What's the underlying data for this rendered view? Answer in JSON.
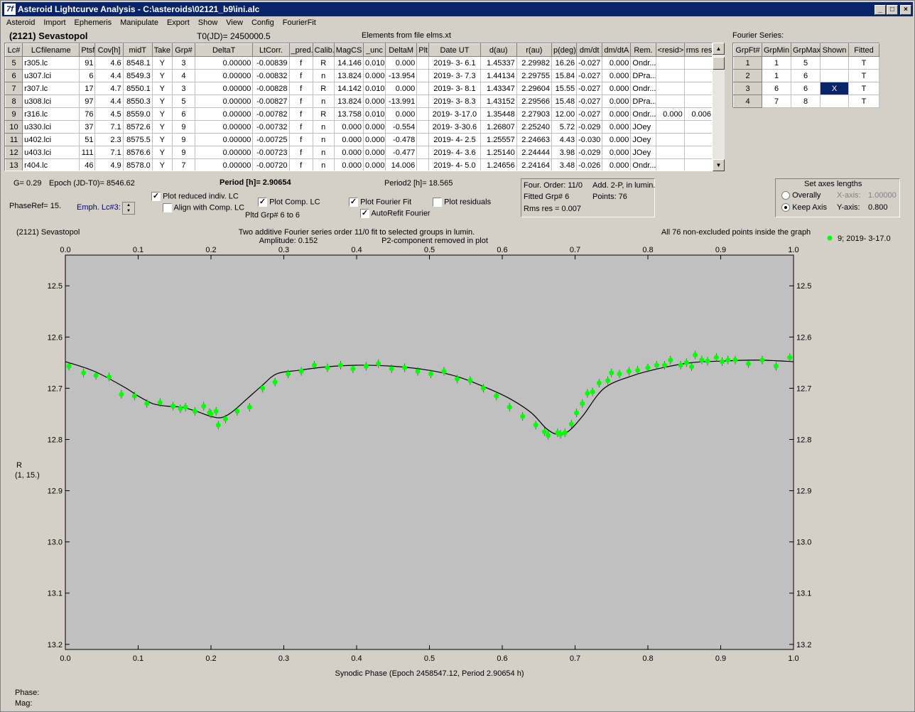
{
  "window": {
    "title": "Asteroid Lightcurve Analysis - C:\\asteroids\\02121_b9\\ini.alc",
    "icon": "7f"
  },
  "menu": [
    "Asteroid",
    "Import",
    "Ephemeris",
    "Manipulate",
    "Export",
    "Show",
    "View",
    "Config",
    "FourierFit"
  ],
  "header": {
    "asteroid": "(2121) Sevastopol",
    "t0": "T0(JD)= 2450000.5",
    "elements": "Elements from file elms.xt"
  },
  "lc_table": {
    "columns": [
      "Lc#",
      "LCfilename",
      "Ptsf",
      "Cov[h]",
      "midT",
      "Take",
      "Grp#",
      "DeltaT",
      "LtCorr.",
      "_pred.",
      "Calib.",
      "MagCS",
      "_unc",
      "DeltaM",
      "Plt",
      "Date UT",
      "d(au)",
      "r(au)",
      "p(deg)",
      "dm/dt",
      "dm/dtA",
      "Rem.",
      "<resid>",
      "rms res"
    ],
    "rows": [
      [
        "5",
        "r305.lc",
        "91",
        "4.6",
        "8548.1",
        "Y",
        "3",
        "0.00000",
        "-0.00839",
        "f",
        "R",
        "14.146",
        "0.010",
        "0.000",
        "",
        "2019- 3- 6.1",
        "1.45337",
        "2.29982",
        "16.26",
        "-0.027",
        "0.000",
        "Ondr...",
        "",
        ""
      ],
      [
        "6",
        "u307.lci",
        "6",
        "4.4",
        "8549.3",
        "Y",
        "4",
        "0.00000",
        "-0.00832",
        "f",
        "n",
        "13.824",
        "0.000",
        "-13.954",
        "",
        "2019- 3- 7.3",
        "1.44134",
        "2.29755",
        "15.84",
        "-0.027",
        "0.000",
        "DPra...",
        "",
        ""
      ],
      [
        "7",
        "r307.lc",
        "17",
        "4.7",
        "8550.1",
        "Y",
        "3",
        "0.00000",
        "-0.00828",
        "f",
        "R",
        "14.142",
        "0.010",
        "0.000",
        "",
        "2019- 3- 8.1",
        "1.43347",
        "2.29604",
        "15.55",
        "-0.027",
        "0.000",
        "Ondr...",
        "",
        ""
      ],
      [
        "8",
        "u308.lci",
        "97",
        "4.4",
        "8550.3",
        "Y",
        "5",
        "0.00000",
        "-0.00827",
        "f",
        "n",
        "13.824",
        "0.000",
        "-13.991",
        "",
        "2019- 3- 8.3",
        "1.43152",
        "2.29566",
        "15.48",
        "-0.027",
        "0.000",
        "DPra...",
        "",
        ""
      ],
      [
        "9",
        "r316.lc",
        "76",
        "4.5",
        "8559.0",
        "Y",
        "6",
        "0.00000",
        "-0.00782",
        "f",
        "R",
        "13.758",
        "0.010",
        "0.000",
        "",
        "2019- 3-17.0",
        "1.35448",
        "2.27903",
        "12.00",
        "-0.027",
        "0.000",
        "Ondr...",
        "0.000",
        "0.006"
      ],
      [
        "10",
        "u330.lci",
        "37",
        "7.1",
        "8572.6",
        "Y",
        "9",
        "0.00000",
        "-0.00732",
        "f",
        "n",
        "0.000",
        "0.000",
        "-0.554",
        "",
        "2019- 3-30.6",
        "1.26807",
        "2.25240",
        "5.72",
        "-0.029",
        "0.000",
        "JOey",
        "",
        ""
      ],
      [
        "11",
        "u402.lci",
        "51",
        "2.3",
        "8575.5",
        "Y",
        "9",
        "0.00000",
        "-0.00725",
        "f",
        "n",
        "0.000",
        "0.000",
        "-0.478",
        "",
        "2019- 4- 2.5",
        "1.25557",
        "2.24663",
        "4.43",
        "-0.030",
        "0.000",
        "JOey",
        "",
        ""
      ],
      [
        "12",
        "u403.lci",
        "111",
        "7.1",
        "8576.6",
        "Y",
        "9",
        "0.00000",
        "-0.00723",
        "f",
        "n",
        "0.000",
        "0.000",
        "-0.477",
        "",
        "2019- 4- 3.6",
        "1.25140",
        "2.24444",
        "3.98",
        "-0.029",
        "0.000",
        "JOey",
        "",
        ""
      ],
      [
        "13",
        "r404.lc",
        "46",
        "4.9",
        "8578.0",
        "Y",
        "7",
        "0.00000",
        "-0.00720",
        "f",
        "n",
        "0.000",
        "0.000",
        "14.006",
        "",
        "2019- 4- 5.0",
        "1.24656",
        "2.24164",
        "3.48",
        "-0.026",
        "0.000",
        "Ondr...",
        "",
        ""
      ]
    ]
  },
  "fourier": {
    "label": "Fourier Series:",
    "columns": [
      "GrpFt#",
      "GrpMin",
      "GrpMax",
      "Shown",
      "Fitted"
    ],
    "rows": [
      [
        "1",
        "1",
        "5",
        "",
        "T"
      ],
      [
        "2",
        "1",
        "6",
        "",
        "T"
      ],
      [
        "3",
        "6",
        "6",
        "X",
        "T"
      ],
      [
        "4",
        "7",
        "8",
        "",
        "T"
      ]
    ]
  },
  "params": {
    "g": "G= 0.29",
    "epoch": "Epoch (JD-T0)= 8546.62",
    "period": "Period [h]= 2.90654",
    "period2": "Period2 [h]= 18.565",
    "phaseref": "PhaseRef= 15.",
    "emph": "Emph. Lc#3:",
    "plot_reduced": "Plot reduced indiv. LC",
    "align": "Align with Comp. LC",
    "plot_comp": "Plot Comp. LC",
    "pltd_grp": "Pltd Grp#  6   to   6",
    "plot_fourier": "Plot Fourier Fit",
    "autorefit": "AutoRefit Fourier",
    "plot_resid": "Plot residuals"
  },
  "fitinfo": {
    "order": "Four. Order: 11/0",
    "add": "Add. 2-P, in lumin.",
    "fitted": "Fitted Grp# 6",
    "points": "Points: 76",
    "rms": "Rms res     = 0.007"
  },
  "axes_box": {
    "title": "Set axes lengths",
    "overally": "Overally",
    "keep": "Keep Axis",
    "xlabel": "X-axis:",
    "xval": "1.00000",
    "ylabel": "Y-axis:",
    "yval": "0.800"
  },
  "footer": {
    "phase": "Phase:",
    "mag": "Mag:"
  },
  "colors": {
    "titlebar": "#0a246a",
    "plot_bg": "#c0c0c0",
    "points": "#00ff00",
    "fit": "#000000"
  },
  "chart_data": {
    "type": "scatter",
    "title_left": "(2121) Sevastopol",
    "title_center": "Two additive Fourier series order 11/0 fit to selected groups in lumin.",
    "amplitude": "Amplitude: 0.152",
    "p2": "P2-component removed in plot",
    "title_right": "All 76 non-excluded points inside the graph",
    "legend": "9; 2019- 3-17.0",
    "xlabel": "Synodic Phase (Epoch 2458547.12, Period 2.90654 h)",
    "ylabel": "R",
    "ylabel2": "(1, 15.)",
    "xlim": [
      0,
      1
    ],
    "ylim": [
      12.44,
      13.21
    ],
    "y_inverted": true,
    "xticks": [
      0.0,
      0.1,
      0.2,
      0.3,
      0.4,
      0.5,
      0.6,
      0.7,
      0.8,
      0.9,
      1.0
    ],
    "xtick_labels": [
      "0.0",
      "0.1",
      "0.2",
      "0.3",
      "0.4",
      "0.5",
      "0.6",
      "0.7",
      "0.8",
      "0.9",
      "1.0"
    ],
    "yticks": [
      12.5,
      12.6,
      12.7,
      12.8,
      12.9,
      13.0,
      13.1,
      13.2
    ],
    "ytick_labels": [
      "12.5",
      "12.6",
      "12.7",
      "12.8",
      "12.9",
      "13.0",
      "13.1",
      "13.2"
    ],
    "series": [
      {
        "name": "9; 2019- 3-17.0",
        "x": [
          0.005,
          0.025,
          0.042,
          0.06,
          0.077,
          0.095,
          0.112,
          0.13,
          0.148,
          0.158,
          0.165,
          0.178,
          0.19,
          0.198,
          0.2,
          0.207,
          0.21,
          0.22,
          0.236,
          0.253,
          0.271,
          0.288,
          0.306,
          0.324,
          0.342,
          0.36,
          0.378,
          0.395,
          0.413,
          0.43,
          0.448,
          0.466,
          0.484,
          0.502,
          0.52,
          0.538,
          0.556,
          0.574,
          0.592,
          0.61,
          0.628,
          0.646,
          0.658,
          0.663,
          0.676,
          0.68,
          0.686,
          0.695,
          0.702,
          0.71,
          0.717,
          0.724,
          0.733,
          0.745,
          0.75,
          0.761,
          0.774,
          0.786,
          0.8,
          0.812,
          0.823,
          0.831,
          0.845,
          0.853,
          0.86,
          0.865,
          0.874,
          0.882,
          0.894,
          0.902,
          0.91,
          0.92,
          0.938,
          0.957,
          0.976,
          0.995
        ],
        "y": [
          12.657,
          12.67,
          12.675,
          12.678,
          12.712,
          12.715,
          12.73,
          12.728,
          12.735,
          12.74,
          12.737,
          12.745,
          12.735,
          12.748,
          12.75,
          12.745,
          12.772,
          12.76,
          12.745,
          12.737,
          12.7,
          12.688,
          12.672,
          12.667,
          12.655,
          12.66,
          12.655,
          12.662,
          12.657,
          12.652,
          12.662,
          12.66,
          12.667,
          12.672,
          12.667,
          12.682,
          12.685,
          12.7,
          12.715,
          12.737,
          12.755,
          12.772,
          12.785,
          12.792,
          12.787,
          12.79,
          12.787,
          12.77,
          12.748,
          12.73,
          12.71,
          12.707,
          12.69,
          12.685,
          12.67,
          12.672,
          12.667,
          12.665,
          12.66,
          12.655,
          12.655,
          12.645,
          12.655,
          12.65,
          12.658,
          12.635,
          12.645,
          12.647,
          12.64,
          12.648,
          12.645,
          12.645,
          12.652,
          12.645,
          12.657,
          12.64
        ]
      }
    ],
    "fit_curve": {
      "x": [
        0,
        0.04,
        0.08,
        0.1,
        0.12,
        0.14,
        0.16,
        0.18,
        0.2,
        0.215,
        0.23,
        0.25,
        0.27,
        0.29,
        0.32,
        0.36,
        0.4,
        0.45,
        0.5,
        0.54,
        0.58,
        0.61,
        0.64,
        0.66,
        0.675,
        0.69,
        0.71,
        0.74,
        0.78,
        0.82,
        0.86,
        0.9,
        0.95,
        1.0
      ],
      "y": [
        12.648,
        12.667,
        12.697,
        12.715,
        12.73,
        12.735,
        12.737,
        12.745,
        12.755,
        12.757,
        12.745,
        12.72,
        12.695,
        12.672,
        12.665,
        12.658,
        12.655,
        12.657,
        12.665,
        12.678,
        12.7,
        12.72,
        12.748,
        12.778,
        12.79,
        12.785,
        12.755,
        12.7,
        12.675,
        12.66,
        12.65,
        12.647,
        12.645,
        12.648
      ]
    }
  }
}
